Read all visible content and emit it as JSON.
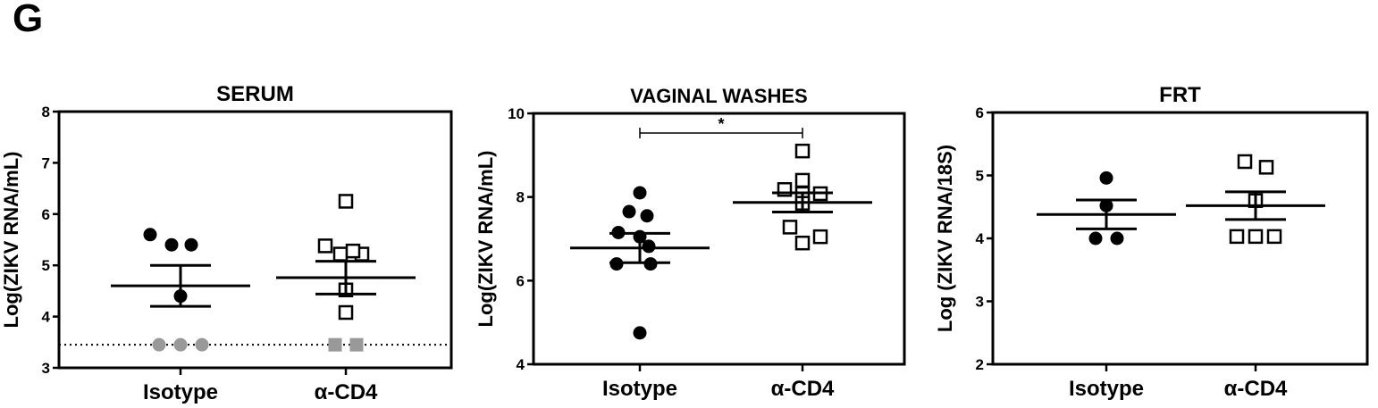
{
  "panel_letter": "G",
  "chart_data": [
    {
      "type": "scatter",
      "title": "SERUM",
      "ylabel": "Log(ZIKV RNA/mL)",
      "categories": [
        "Isotype",
        "α-CD4"
      ],
      "ylim": [
        3,
        8
      ],
      "yticks": [
        "3",
        "4",
        "5",
        "6",
        "7",
        "8"
      ],
      "detection_limit": 3.45,
      "series": [
        {
          "marker": "circle",
          "color": "#000000",
          "points": [
            4.4,
            5.6,
            5.4,
            5.4,
            3.45,
            3.45,
            3.45
          ],
          "mean": 4.6,
          "sem": 0.4,
          "below_limit_color": "#999999"
        },
        {
          "marker": "square",
          "color": "#000000",
          "points": [
            6.25,
            5.38,
            5.22,
            5.22,
            5.28,
            4.52,
            4.08,
            3.45,
            3.45
          ],
          "mean": 4.76,
          "sem": 0.32,
          "below_limit_color": "#999999"
        }
      ],
      "significance": null
    },
    {
      "type": "scatter",
      "title": "VAGINAL WASHES",
      "ylabel": "Log(ZIKV RNA/mL)",
      "categories": [
        "Isotype",
        "α-CD4"
      ],
      "ylim": [
        4,
        10
      ],
      "yticks": [
        "4",
        "6",
        "8",
        "10"
      ],
      "series": [
        {
          "marker": "circle",
          "color": "#000000",
          "points": [
            8.1,
            7.65,
            7.55,
            7.15,
            7.05,
            6.82,
            6.4,
            6.4,
            4.75
          ],
          "mean": 6.78,
          "sem": 0.35
        },
        {
          "marker": "square",
          "color": "#000000",
          "points": [
            9.1,
            8.4,
            8.18,
            8.08,
            8.08,
            7.85,
            7.28,
            7.05,
            6.9
          ],
          "mean": 7.87,
          "sem": 0.23
        }
      ],
      "significance": "*"
    },
    {
      "type": "scatter",
      "title": "FRT",
      "ylabel": "Log (ZIKV RNA/18S)",
      "categories": [
        "Isotype",
        "α-CD4"
      ],
      "ylim": [
        2,
        6
      ],
      "yticks": [
        "2",
        "3",
        "4",
        "5",
        "6"
      ],
      "series": [
        {
          "marker": "circle",
          "color": "#000000",
          "points": [
            4.96,
            4.52,
            4.0,
            4.0
          ],
          "mean": 4.38,
          "sem": 0.23
        },
        {
          "marker": "square",
          "color": "#000000",
          "points": [
            5.22,
            5.13,
            4.6,
            4.03,
            4.03,
            4.03
          ],
          "mean": 4.52,
          "sem": 0.22
        }
      ],
      "significance": null
    }
  ]
}
